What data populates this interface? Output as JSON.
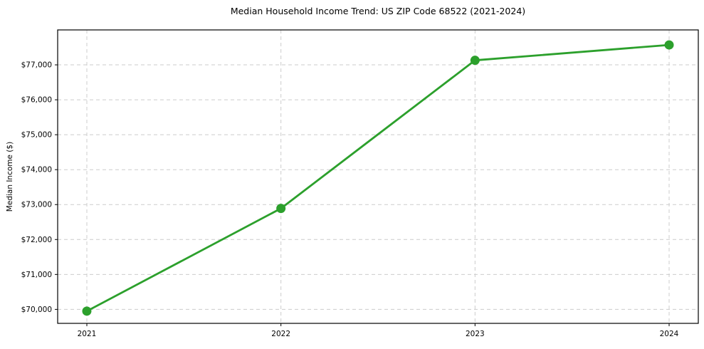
{
  "chart_data": {
    "type": "line",
    "title": "Median Household Income Trend: US ZIP Code 68522 (2021-2024)",
    "xlabel": "",
    "ylabel": "Median Income ($)",
    "categories": [
      "2021",
      "2022",
      "2023",
      "2024"
    ],
    "series": [
      {
        "name": "Median Household Income",
        "values": [
          69950,
          72890,
          77130,
          77570
        ]
      }
    ],
    "ylim": [
      69600,
      78000
    ],
    "yticks": [
      70000,
      71000,
      72000,
      73000,
      74000,
      75000,
      76000,
      77000
    ],
    "ytick_labels": [
      "$70,000",
      "$71,000",
      "$72,000",
      "$73,000",
      "$74,000",
      "$75,000",
      "$76,000",
      "$77,000"
    ],
    "grid": true,
    "grid_style": "dashed",
    "legend_position": "none",
    "colors": {
      "line": "#2ca02c",
      "marker": "#2ca02c",
      "gridline": "#cccccc",
      "spine": "#000000",
      "background": "#ffffff"
    }
  }
}
